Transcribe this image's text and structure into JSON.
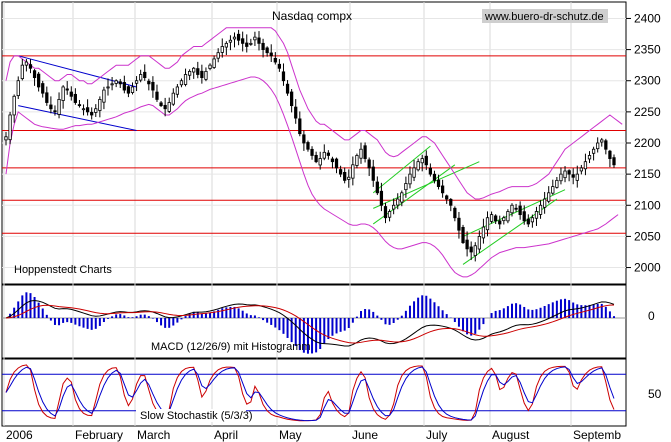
{
  "chart_data": [
    {
      "type": "candlestick",
      "title": "Nasdaq compx",
      "source": "www.buero-dr-schutz.de",
      "credit": "Hoppenstedt Charts",
      "months": [
        "2006",
        "February",
        "March",
        "April",
        "May",
        "June",
        "July",
        "August",
        "Septemb"
      ],
      "y_ticks": [
        2400,
        2350,
        2300,
        2250,
        2200,
        2150,
        2100,
        2050,
        2000
      ],
      "ylim": [
        1980,
        2420
      ],
      "horizontal_levels": [
        2340,
        2220,
        2160,
        2108,
        2055
      ],
      "closes": [
        2210,
        2245,
        2275,
        2300,
        2325,
        2330,
        2320,
        2305,
        2290,
        2280,
        2265,
        2255,
        2250,
        2270,
        2290,
        2285,
        2275,
        2265,
        2260,
        2255,
        2250,
        2245,
        2255,
        2270,
        2285,
        2290,
        2295,
        2300,
        2295,
        2285,
        2280,
        2290,
        2300,
        2310,
        2305,
        2295,
        2285,
        2270,
        2260,
        2255,
        2265,
        2280,
        2290,
        2300,
        2310,
        2315,
        2320,
        2310,
        2305,
        2315,
        2325,
        2335,
        2345,
        2355,
        2360,
        2365,
        2370,
        2365,
        2360,
        2355,
        2360,
        2370,
        2360,
        2350,
        2345,
        2340,
        2330,
        2320,
        2300,
        2280,
        2260,
        2240,
        2215,
        2200,
        2190,
        2180,
        2170,
        2175,
        2185,
        2180,
        2170,
        2160,
        2150,
        2140,
        2145,
        2165,
        2180,
        2190,
        2175,
        2160,
        2140,
        2120,
        2100,
        2080,
        2090,
        2100,
        2110,
        2120,
        2135,
        2150,
        2160,
        2170,
        2175,
        2165,
        2150,
        2140,
        2130,
        2120,
        2110,
        2100,
        2080,
        2060,
        2040,
        2030,
        2025,
        2035,
        2050,
        2065,
        2080,
        2085,
        2075,
        2070,
        2080,
        2090,
        2100,
        2095,
        2085,
        2075,
        2070,
        2080,
        2090,
        2100,
        2110,
        2120,
        2130,
        2140,
        2150,
        2155,
        2150,
        2145,
        2150,
        2160,
        2170,
        2180,
        2190,
        2200,
        2205,
        2190,
        2175,
        2165
      ],
      "bollinger_upper": [
        2300,
        2330,
        2340,
        2340,
        2335,
        2330,
        2325,
        2320,
        2320,
        2315,
        2310,
        2305,
        2300,
        2300,
        2305,
        2310,
        2310,
        2305,
        2300,
        2300,
        2295,
        2295,
        2300,
        2305,
        2310,
        2315,
        2320,
        2325,
        2325,
        2325,
        2325,
        2330,
        2335,
        2340,
        2340,
        2340,
        2335,
        2330,
        2325,
        2320,
        2320,
        2325,
        2330,
        2340,
        2345,
        2350,
        2355,
        2355,
        2355,
        2360,
        2365,
        2370,
        2375,
        2380,
        2385,
        2385,
        2385,
        2385,
        2385,
        2385,
        2385,
        2385,
        2385,
        2385,
        2385,
        2385,
        2380,
        2370,
        2360,
        2345,
        2325,
        2305,
        2285,
        2270,
        2255,
        2245,
        2235,
        2230,
        2230,
        2225,
        2220,
        2215,
        2210,
        2205,
        2205,
        2210,
        2215,
        2220,
        2220,
        2215,
        2210,
        2205,
        2195,
        2185,
        2180,
        2178,
        2180,
        2185,
        2190,
        2195,
        2200,
        2205,
        2210,
        2210,
        2205,
        2200,
        2190,
        2180,
        2170,
        2160,
        2150,
        2140,
        2130,
        2120,
        2115,
        2110,
        2110,
        2112,
        2115,
        2118,
        2120,
        2122,
        2125,
        2128,
        2130,
        2130,
        2130,
        2130,
        2130,
        2132,
        2135,
        2140,
        2145,
        2150,
        2160,
        2170,
        2180,
        2190,
        2195,
        2200,
        2205,
        2210,
        2215,
        2220,
        2225,
        2230,
        2235,
        2240,
        2245,
        2240,
        2235,
        2230
      ],
      "bollinger_lower": [
        2150,
        2200,
        2230,
        2250,
        2245,
        2240,
        2235,
        2230,
        2228,
        2226,
        2225,
        2224,
        2223,
        2222,
        2222,
        2224,
        2226,
        2228,
        2228,
        2229,
        2230,
        2230,
        2232,
        2234,
        2236,
        2238,
        2240,
        2242,
        2245,
        2248,
        2250,
        2252,
        2255,
        2258,
        2260,
        2262,
        2260,
        2255,
        2250,
        2245,
        2245,
        2250,
        2255,
        2262,
        2268,
        2272,
        2275,
        2278,
        2280,
        2283,
        2286,
        2288,
        2290,
        2292,
        2294,
        2296,
        2298,
        2300,
        2302,
        2304,
        2306,
        2306,
        2304,
        2300,
        2294,
        2286,
        2276,
        2262,
        2246,
        2228,
        2210,
        2190,
        2170,
        2150,
        2132,
        2118,
        2108,
        2100,
        2094,
        2090,
        2086,
        2082,
        2078,
        2074,
        2070,
        2068,
        2068,
        2070,
        2070,
        2068,
        2064,
        2058,
        2050,
        2042,
        2036,
        2032,
        2030,
        2030,
        2032,
        2034,
        2036,
        2038,
        2040,
        2040,
        2038,
        2034,
        2028,
        2020,
        2010,
        2000,
        1992,
        1988,
        1985,
        1985,
        1988,
        1992,
        1998,
        2004,
        2010,
        2016,
        2020,
        2024,
        2026,
        2028,
        2030,
        2032,
        2032,
        2032,
        2033,
        2034,
        2035,
        2036,
        2037,
        2038,
        2040,
        2042,
        2044,
        2046,
        2048,
        2050,
        2052,
        2054,
        2056,
        2058,
        2060,
        2062,
        2066,
        2070,
        2075,
        2080,
        2085
      ],
      "indicators": [
        {
          "name": "MACD (12/26/9) mit Histogramm",
          "type": "line+histogram"
        },
        {
          "name": "Slow Stochastik (5/3/3)",
          "type": "oscillator",
          "levels": [
            80,
            20
          ],
          "right_label": "50"
        }
      ],
      "macd_zero_label": "0",
      "grid": true
    }
  ]
}
